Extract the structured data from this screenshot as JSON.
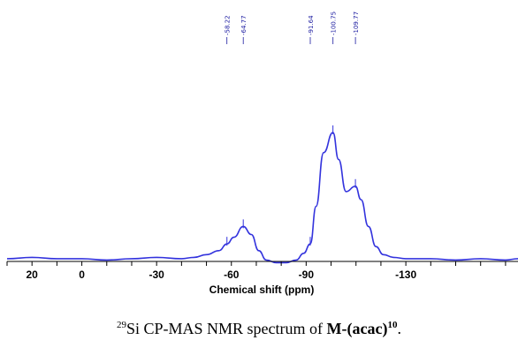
{
  "chart_data": {
    "type": "line",
    "xlabel": "Chemical shift (ppm)",
    "ylabel": "",
    "xlim": [
      30,
      -175
    ],
    "x_ticks_labeled": [
      20,
      0,
      -30,
      -60,
      -90,
      -130
    ],
    "peak_labels": [
      "-58.22",
      "-64.77",
      "-91.64",
      "-100.75",
      "-109.77"
    ],
    "peak_positions": [
      -58.22,
      -64.77,
      -91.64,
      -100.75,
      -109.77
    ],
    "series": [
      {
        "color": "#3333dd",
        "x": [
          30,
          20,
          10,
          0,
          -10,
          -20,
          -30,
          -40,
          -45,
          -50,
          -55,
          -58.22,
          -61,
          -64.77,
          -68,
          -71,
          -74,
          -78,
          -82,
          -86,
          -89,
          -91.64,
          -94,
          -97,
          -100.75,
          -103,
          -106,
          -109.77,
          -112,
          -115,
          -118,
          -121,
          -125,
          -130,
          -140,
          -150,
          -160,
          -170,
          -175
        ],
        "y": [
          0.06,
          0.07,
          0.06,
          0.06,
          0.05,
          0.06,
          0.07,
          0.06,
          0.07,
          0.09,
          0.12,
          0.17,
          0.22,
          0.3,
          0.24,
          0.12,
          0.05,
          0.03,
          0.03,
          0.05,
          0.1,
          0.17,
          0.45,
          0.85,
          1.0,
          0.8,
          0.56,
          0.6,
          0.5,
          0.3,
          0.15,
          0.09,
          0.07,
          0.06,
          0.06,
          0.05,
          0.06,
          0.05,
          0.06
        ]
      }
    ]
  },
  "caption": {
    "isotope_sup": "29",
    "text_main": "Si CP-MAS NMR spectrum of ",
    "compound": "M-(acac)",
    "compound_sup": "10",
    "end": "."
  }
}
